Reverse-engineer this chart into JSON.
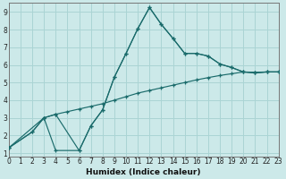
{
  "xlabel": "Humidex (Indice chaleur)",
  "xlim": [
    0,
    23
  ],
  "ylim": [
    0.8,
    9.5
  ],
  "xticks": [
    0,
    1,
    2,
    3,
    4,
    5,
    6,
    7,
    8,
    9,
    10,
    11,
    12,
    13,
    14,
    15,
    16,
    17,
    18,
    19,
    20,
    21,
    22,
    23
  ],
  "yticks": [
    1,
    2,
    3,
    4,
    5,
    6,
    7,
    8,
    9
  ],
  "background_color": "#cce9e9",
  "line_color": "#1a6b6b",
  "grid_color": "#aad4d4",
  "line1_x": [
    0,
    2,
    3,
    4,
    5,
    6,
    7,
    8,
    9,
    10,
    11,
    12,
    13,
    14,
    15,
    16,
    17,
    18,
    19,
    20,
    21,
    22,
    23
  ],
  "line1_y": [
    1.3,
    2.2,
    3.0,
    3.2,
    3.35,
    3.5,
    3.65,
    3.8,
    4.0,
    4.2,
    4.4,
    4.55,
    4.7,
    4.85,
    5.0,
    5.15,
    5.28,
    5.4,
    5.5,
    5.6,
    5.58,
    5.6,
    5.6
  ],
  "line2_x": [
    0,
    2,
    3,
    4,
    6,
    7,
    8,
    9,
    10,
    11,
    12,
    13,
    14,
    15,
    16,
    17,
    18,
    19,
    20,
    21,
    22,
    23
  ],
  "line2_y": [
    1.3,
    2.2,
    3.0,
    3.2,
    1.15,
    2.55,
    3.45,
    5.3,
    6.65,
    8.05,
    9.25,
    8.3,
    7.5,
    6.65,
    6.65,
    6.5,
    6.05,
    5.85,
    5.6,
    5.55,
    5.6,
    5.6
  ],
  "line3_x": [
    0,
    3,
    4,
    6,
    7,
    8,
    9,
    10,
    11,
    12,
    13,
    14,
    15,
    16,
    17,
    18,
    19,
    20,
    21,
    22,
    23
  ],
  "line3_y": [
    1.3,
    3.0,
    1.15,
    1.15,
    2.55,
    3.45,
    5.3,
    6.65,
    8.05,
    9.25,
    8.3,
    7.5,
    6.65,
    6.65,
    6.5,
    6.05,
    5.85,
    5.6,
    5.55,
    5.6,
    5.6
  ]
}
